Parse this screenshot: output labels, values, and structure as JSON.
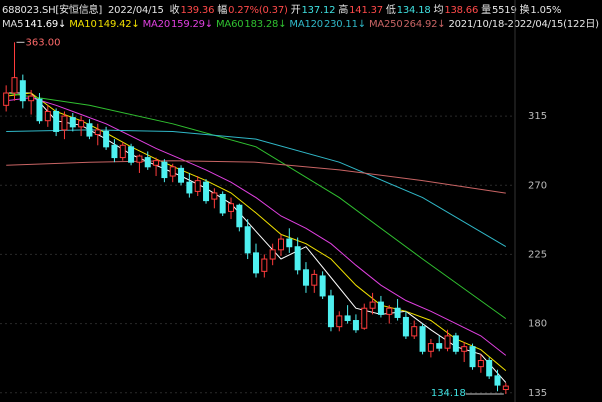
{
  "header": {
    "code": "688023.SH[安恒信息]",
    "date": "2022/04/15",
    "items": [
      {
        "label": "收",
        "value": "139.36"
      },
      {
        "label": "幅",
        "value": "0.27%(0.37)"
      },
      {
        "label": "开",
        "value": "137.12"
      },
      {
        "label": "高",
        "value": "141.37"
      },
      {
        "label": "低",
        "value": "134.18"
      },
      {
        "label": "均",
        "value": "138.66"
      },
      {
        "label": "量",
        "value": "5519"
      },
      {
        "label": "换",
        "value": "1.05%"
      }
    ],
    "range": "2021/10/18-2022/04/15(122日)"
  },
  "chart_data": {
    "type": "candlestick",
    "up_color": "#ff3c3c",
    "down_color": "#4ff0f0",
    "ylim": [
      129,
      371
    ],
    "yticks": [
      135,
      180,
      225,
      270,
      315
    ],
    "grid": true,
    "high_label": "363.00",
    "low_label": "134.18",
    "open": [
      322,
      330,
      338,
      325,
      326,
      312,
      318,
      306,
      314,
      308,
      310,
      303,
      305,
      296,
      288,
      295,
      285,
      288,
      283,
      285,
      276,
      281,
      272,
      266,
      272,
      261,
      264,
      253,
      257,
      243,
      226,
      214,
      222,
      228,
      235,
      230,
      215,
      205,
      211,
      198,
      178,
      185,
      182,
      177,
      190,
      194,
      186,
      190,
      184,
      172,
      178,
      162,
      167,
      164,
      172,
      162,
      165,
      152,
      156,
      146,
      137.12
    ],
    "high": [
      335,
      363,
      342,
      332,
      330,
      322,
      320,
      318,
      317,
      315,
      313,
      310,
      308,
      300,
      298,
      297,
      290,
      292,
      288,
      287,
      284,
      283,
      278,
      276,
      274,
      268,
      266,
      262,
      258,
      248,
      232,
      225,
      232,
      238,
      242,
      236,
      220,
      215,
      214,
      202,
      188,
      192,
      186,
      193,
      200,
      198,
      192,
      196,
      188,
      182,
      180,
      170,
      172,
      176,
      174,
      168,
      167,
      160,
      158,
      150,
      141.37
    ],
    "low": [
      318,
      325,
      320,
      316,
      310,
      308,
      302,
      300,
      305,
      302,
      300,
      296,
      293,
      285,
      286,
      283,
      278,
      280,
      276,
      272,
      272,
      270,
      262,
      263,
      258,
      255,
      250,
      248,
      240,
      222,
      210,
      210,
      218,
      224,
      226,
      212,
      200,
      200,
      196,
      175,
      175,
      180,
      174,
      176,
      186,
      184,
      180,
      182,
      170,
      170,
      160,
      158,
      162,
      162,
      160,
      155,
      150,
      148,
      144,
      136,
      134.18
    ],
    "close": [
      330,
      340,
      325,
      328,
      312,
      318,
      305,
      315,
      308,
      312,
      302,
      306,
      295,
      288,
      296,
      285,
      289,
      282,
      286,
      275,
      282,
      272,
      265,
      273,
      260,
      265,
      252,
      258,
      243,
      226,
      213,
      222,
      228,
      235,
      230,
      215,
      205,
      212,
      198,
      178,
      185,
      182,
      176,
      190,
      194,
      186,
      190,
      184,
      172,
      178,
      162,
      167,
      164,
      172,
      162,
      165,
      152,
      156,
      146,
      140,
      139.36
    ],
    "series": [
      {
        "name": "MA5",
        "color": "#ffffff",
        "current_label": "141.69↓",
        "x": [
          0,
          3,
          6,
          9,
          12,
          15,
          18,
          21,
          24,
          27,
          30,
          33,
          36,
          39,
          42,
          45,
          48,
          51,
          54,
          57,
          60
        ],
        "values": [
          330,
          330,
          312,
          309,
          300,
          290,
          283,
          276,
          268,
          258,
          240,
          222,
          230,
          210,
          190,
          186,
          188,
          176,
          165,
          160,
          141.69
        ]
      },
      {
        "name": "MA10",
        "color": "#f0e000",
        "current_label": "149.42↓",
        "x": [
          0,
          3,
          6,
          9,
          12,
          15,
          18,
          21,
          24,
          27,
          30,
          33,
          36,
          39,
          42,
          45,
          48,
          51,
          54,
          57,
          60
        ],
        "values": [
          328,
          330,
          318,
          312,
          304,
          295,
          287,
          280,
          273,
          265,
          252,
          238,
          232,
          222,
          205,
          192,
          188,
          182,
          170,
          163,
          149.42
        ]
      },
      {
        "name": "MA20",
        "color": "#e040e0",
        "current_label": "159.29↓",
        "x": [
          0,
          3,
          6,
          9,
          12,
          15,
          18,
          21,
          24,
          27,
          30,
          33,
          36,
          39,
          42,
          45,
          48,
          51,
          54,
          57,
          60
        ],
        "values": [
          325,
          327,
          322,
          316,
          310,
          302,
          294,
          287,
          280,
          272,
          262,
          250,
          242,
          232,
          218,
          205,
          195,
          188,
          180,
          172,
          159.29
        ]
      },
      {
        "name": "MA60",
        "color": "#30c030",
        "current_label": "183.28↓",
        "x": [
          0,
          10,
          20,
          30,
          40,
          50,
          60
        ],
        "values": [
          330,
          322,
          310,
          295,
          262,
          222,
          183.28
        ]
      },
      {
        "name": "MA120",
        "color": "#30b8c8",
        "current_label": "230.11↓",
        "x": [
          0,
          10,
          20,
          30,
          40,
          50,
          60
        ],
        "values": [
          305,
          306,
          305,
          300,
          285,
          262,
          230.11
        ]
      },
      {
        "name": "MA250",
        "color": "#c86464",
        "current_label": "264.92↓",
        "x": [
          0,
          10,
          20,
          30,
          40,
          50,
          60
        ],
        "values": [
          283,
          285,
          286,
          285,
          280,
          273,
          264.92
        ]
      }
    ]
  }
}
